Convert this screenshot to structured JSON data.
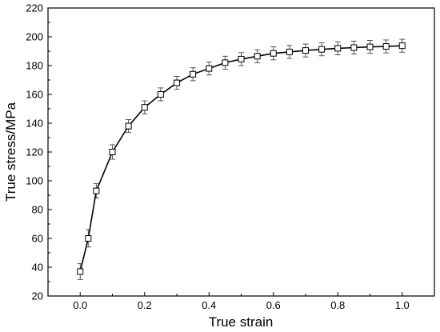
{
  "chart_data": {
    "type": "line",
    "xlabel": "True strain",
    "ylabel": "True stress/MPa",
    "xlim": [
      -0.1,
      1.1
    ],
    "ylim": [
      20,
      220
    ],
    "xticks": [
      "0.0",
      "0.2",
      "0.4",
      "0.6",
      "0.8",
      "1.0"
    ],
    "yticks": [
      "20",
      "40",
      "60",
      "80",
      "100",
      "120",
      "140",
      "160",
      "180",
      "200",
      "220"
    ],
    "grid": false,
    "marker": "open-square",
    "error_bars": true,
    "series": [
      {
        "x": [
          0.0,
          0.025,
          0.05,
          0.1,
          0.15,
          0.2,
          0.25,
          0.3,
          0.35,
          0.4,
          0.45,
          0.5,
          0.55,
          0.6,
          0.65,
          0.7,
          0.75,
          0.8,
          0.85,
          0.9,
          0.95,
          1.0
        ],
        "y": [
          37,
          60,
          93,
          120,
          138,
          151,
          160,
          168,
          174,
          178,
          182,
          184.5,
          186.5,
          188.5,
          189.5,
          190.5,
          191.3,
          192,
          192.5,
          193,
          193.3,
          193.8
        ],
        "error": [
          5.5,
          6,
          5,
          5,
          4.5,
          4.5,
          4.5,
          4.5,
          4.5,
          4.5,
          4.5,
          4.5,
          4.5,
          4.5,
          4.5,
          4.5,
          4.5,
          4.5,
          4.5,
          4.5,
          4.5,
          4.5
        ]
      }
    ]
  }
}
